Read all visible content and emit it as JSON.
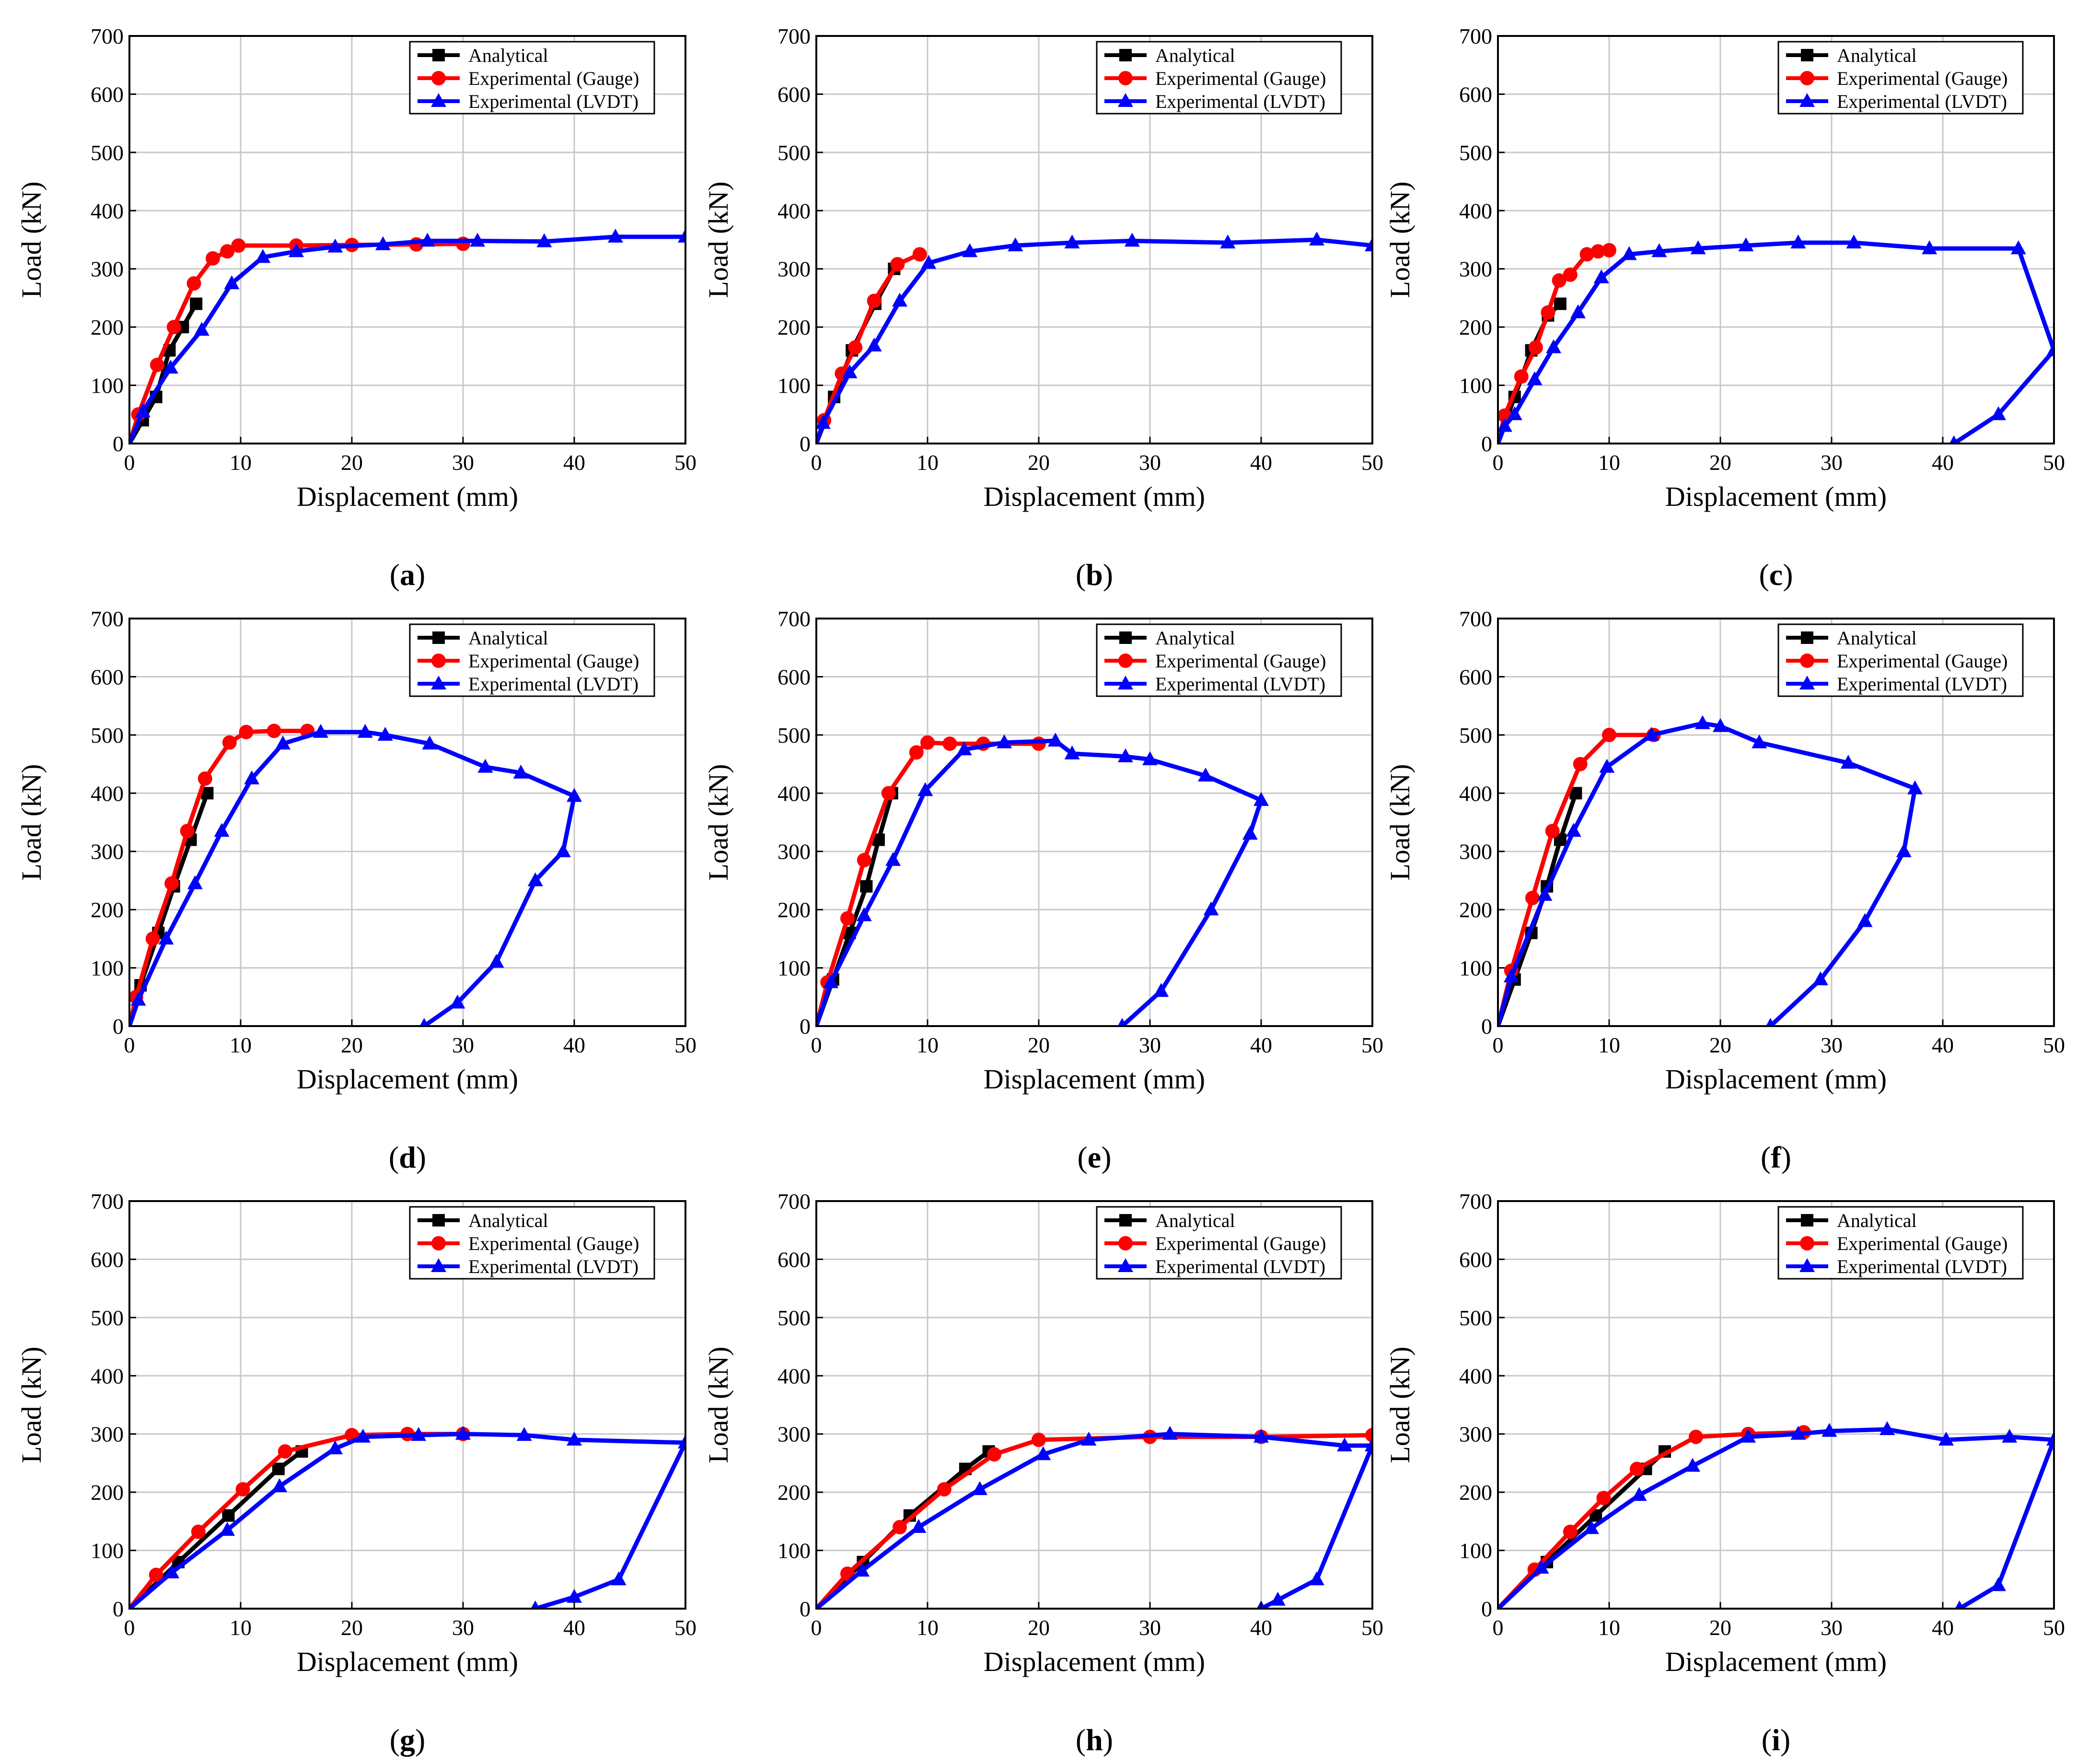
{
  "figure": {
    "legend": [
      "Analytical",
      "Experimental (Gauge)",
      "Experimental (LVDT)"
    ],
    "colors": {
      "analytical": "#000000",
      "gauge": "#ff0000",
      "lvdt": "#0000ff",
      "grid": "#c8c8c8"
    }
  },
  "chart_data": [
    {
      "panel": "a",
      "caption_letter": "a",
      "type": "line",
      "xlabel": "Displacement (mm)",
      "ylabel": "Load (kN)",
      "xlim": [
        0,
        50
      ],
      "ylim": [
        0,
        700
      ],
      "xticks": [
        0,
        10,
        20,
        30,
        40,
        50
      ],
      "yticks": [
        0,
        100,
        200,
        300,
        400,
        500,
        600,
        700
      ],
      "grid": true,
      "legend_position": "top-right",
      "series": [
        {
          "name": "Analytical",
          "marker": "square",
          "x": [
            0,
            1.2,
            2.4,
            3.6,
            4.8,
            6.0
          ],
          "y": [
            0,
            40,
            80,
            160,
            200,
            240
          ]
        },
        {
          "name": "Experimental (Gauge)",
          "marker": "circle",
          "x": [
            0,
            0.8,
            2.5,
            4.0,
            5.8,
            7.5,
            8.8,
            9.8,
            15,
            20,
            25.8,
            30
          ],
          "y": [
            0,
            50,
            135,
            200,
            275,
            318,
            330,
            340,
            340,
            341,
            342,
            343
          ]
        },
        {
          "name": "Experimental (LVDT)",
          "marker": "triangle",
          "x": [
            0,
            1.2,
            3.7,
            6.5,
            9.2,
            12,
            15,
            18.5,
            22.8,
            26.8,
            31.3,
            37.3,
            43.7,
            50
          ],
          "y": [
            0,
            55,
            130,
            195,
            275,
            320,
            330,
            338,
            342,
            348,
            348,
            347,
            355,
            355
          ]
        }
      ]
    },
    {
      "panel": "b",
      "caption_letter": "b",
      "type": "line",
      "xlabel": "Displacement (mm)",
      "ylabel": "Load (kN)",
      "xlim": [
        0,
        50
      ],
      "ylim": [
        0,
        700
      ],
      "xticks": [
        0,
        10,
        20,
        30,
        40,
        50
      ],
      "yticks": [
        0,
        100,
        200,
        300,
        400,
        500,
        600,
        700
      ],
      "grid": true,
      "legend_position": "top-right",
      "series": [
        {
          "name": "Analytical",
          "marker": "square",
          "x": [
            0,
            1.6,
            3.2,
            5.3,
            7.0
          ],
          "y": [
            0,
            80,
            160,
            240,
            300
          ]
        },
        {
          "name": "Experimental (Gauge)",
          "marker": "circle",
          "x": [
            0,
            0.7,
            2.3,
            3.5,
            5.2,
            7.3,
            9.3
          ],
          "y": [
            0,
            40,
            120,
            165,
            245,
            308,
            325
          ]
        },
        {
          "name": "Experimental (LVDT)",
          "marker": "triangle",
          "x": [
            0,
            0.6,
            3.0,
            5.2,
            7.5,
            10.1,
            13.8,
            17.9,
            23,
            28.4,
            37,
            45,
            50
          ],
          "y": [
            0,
            35,
            122,
            168,
            245,
            310,
            330,
            340,
            345,
            348,
            345,
            350,
            340
          ]
        }
      ]
    },
    {
      "panel": "c",
      "caption_letter": "c",
      "type": "line",
      "xlabel": "Displacement (mm)",
      "ylabel": "Load (kN)",
      "xlim": [
        0,
        50
      ],
      "ylim": [
        0,
        700
      ],
      "xticks": [
        0,
        10,
        20,
        30,
        40,
        50
      ],
      "yticks": [
        0,
        100,
        200,
        300,
        400,
        500,
        600,
        700
      ],
      "grid": true,
      "legend_position": "top-right",
      "series": [
        {
          "name": "Analytical",
          "marker": "square",
          "x": [
            0,
            1.5,
            3.0,
            4.5,
            5.6
          ],
          "y": [
            0,
            80,
            160,
            220,
            240
          ]
        },
        {
          "name": "Experimental (Gauge)",
          "marker": "circle",
          "x": [
            0,
            0.6,
            2.1,
            3.4,
            4.5,
            5.5,
            6.5,
            8.0,
            9.0,
            10.0
          ],
          "y": [
            0,
            48,
            115,
            165,
            225,
            280,
            290,
            325,
            330,
            332
          ]
        },
        {
          "name": "Experimental (LVDT)",
          "marker": "triangle",
          "x": [
            0,
            0.6,
            1.5,
            3.3,
            5.0,
            7.2,
            9.3,
            11.8,
            14.5,
            18.0,
            22.3,
            27.0,
            32.0,
            38.8,
            46.8,
            50,
            45,
            41
          ],
          "y": [
            0,
            30,
            50,
            110,
            165,
            225,
            285,
            325,
            330,
            335,
            340,
            345,
            345,
            335,
            335,
            160,
            50,
            0
          ]
        }
      ]
    },
    {
      "panel": "d",
      "caption_letter": "d",
      "type": "line",
      "xlabel": "Displacement (mm)",
      "ylabel": "Load (kN)",
      "xlim": [
        0,
        50
      ],
      "ylim": [
        0,
        700
      ],
      "xticks": [
        0,
        10,
        20,
        30,
        40,
        50
      ],
      "yticks": [
        0,
        100,
        200,
        300,
        400,
        500,
        600,
        700
      ],
      "grid": true,
      "legend_position": "top-right",
      "series": [
        {
          "name": "Analytical",
          "marker": "square",
          "x": [
            0,
            1.0,
            2.6,
            4.0,
            5.5,
            7.0
          ],
          "y": [
            0,
            70,
            160,
            240,
            320,
            400
          ]
        },
        {
          "name": "Experimental (Gauge)",
          "marker": "circle",
          "x": [
            0,
            0.6,
            2.1,
            3.8,
            5.2,
            6.8,
            9.0,
            10.5,
            13.0,
            16.0
          ],
          "y": [
            0,
            50,
            150,
            245,
            335,
            425,
            487,
            505,
            507,
            507
          ]
        },
        {
          "name": "Experimental (LVDT)",
          "marker": "triangle",
          "x": [
            0,
            0.8,
            3.3,
            5.9,
            8.3,
            11.0,
            13.8,
            17.2,
            21.2,
            23.0,
            27.0,
            32.0,
            35.2,
            40.0,
            39.0,
            36.5,
            33.0,
            29.5,
            26.5
          ],
          "y": [
            0,
            45,
            150,
            245,
            335,
            425,
            485,
            505,
            505,
            500,
            485,
            445,
            435,
            395,
            300,
            250,
            110,
            40,
            0
          ]
        }
      ]
    },
    {
      "panel": "e",
      "caption_letter": "e",
      "type": "line",
      "xlabel": "Displacement (mm)",
      "ylabel": "Load (kN)",
      "xlim": [
        0,
        50
      ],
      "ylim": [
        0,
        700
      ],
      "xticks": [
        0,
        10,
        20,
        30,
        40,
        50
      ],
      "yticks": [
        0,
        100,
        200,
        300,
        400,
        500,
        600,
        700
      ],
      "grid": true,
      "legend_position": "top-right",
      "series": [
        {
          "name": "Analytical",
          "marker": "square",
          "x": [
            0,
            1.5,
            3.0,
            4.5,
            5.6,
            6.8
          ],
          "y": [
            0,
            80,
            160,
            240,
            320,
            400
          ]
        },
        {
          "name": "Experimental (Gauge)",
          "marker": "circle",
          "x": [
            0,
            1.0,
            2.8,
            4.3,
            6.5,
            9.0,
            10.0,
            12.0,
            15.0,
            20.0
          ],
          "y": [
            0,
            75,
            185,
            285,
            400,
            470,
            487,
            485,
            485,
            485
          ]
        },
        {
          "name": "Experimental (LVDT)",
          "marker": "triangle",
          "x": [
            0,
            1.3,
            4.3,
            6.9,
            9.8,
            13.3,
            16.9,
            21.5,
            23.0,
            27.8,
            30.0,
            35.0,
            40.0,
            39.0,
            35.5,
            31.0,
            27.5
          ],
          "y": [
            0,
            75,
            190,
            285,
            405,
            475,
            487,
            490,
            468,
            463,
            458,
            430,
            388,
            330,
            200,
            60,
            0
          ]
        }
      ]
    },
    {
      "panel": "f",
      "caption_letter": "f",
      "type": "line",
      "xlabel": "Displacement (mm)",
      "ylabel": "Load (kN)",
      "xlim": [
        0,
        50
      ],
      "ylim": [
        0,
        700
      ],
      "xticks": [
        0,
        10,
        20,
        30,
        40,
        50
      ],
      "yticks": [
        0,
        100,
        200,
        300,
        400,
        500,
        600,
        700
      ],
      "grid": true,
      "legend_position": "top-right",
      "series": [
        {
          "name": "Analytical",
          "marker": "square",
          "x": [
            0,
            1.5,
            3.0,
            4.4,
            5.6,
            7.0
          ],
          "y": [
            0,
            80,
            160,
            240,
            320,
            400
          ]
        },
        {
          "name": "Experimental (Gauge)",
          "marker": "circle",
          "x": [
            0,
            1.2,
            3.1,
            4.9,
            7.4,
            10.0,
            14.0
          ],
          "y": [
            0,
            95,
            220,
            335,
            450,
            500,
            500
          ]
        },
        {
          "name": "Experimental (LVDT)",
          "marker": "triangle",
          "x": [
            0,
            1.2,
            4.2,
            6.8,
            9.8,
            13.8,
            18.4,
            20.0,
            23.5,
            31.5,
            37.5,
            36.5,
            33.0,
            29.0,
            24.5
          ],
          "y": [
            0,
            85,
            225,
            335,
            445,
            500,
            520,
            515,
            487,
            452,
            408,
            300,
            180,
            80,
            0
          ]
        }
      ]
    },
    {
      "panel": "g",
      "caption_letter": "g",
      "type": "line",
      "xlabel": "Displacement (mm)",
      "ylabel": "Load (kN)",
      "xlim": [
        0,
        50
      ],
      "ylim": [
        0,
        700
      ],
      "xticks": [
        0,
        10,
        20,
        30,
        40,
        50
      ],
      "yticks": [
        0,
        100,
        200,
        300,
        400,
        500,
        600,
        700
      ],
      "grid": true,
      "legend_position": "top-right",
      "series": [
        {
          "name": "Analytical",
          "marker": "square",
          "x": [
            0,
            4.4,
            8.9,
            13.4,
            15.5
          ],
          "y": [
            0,
            80,
            160,
            240,
            270
          ]
        },
        {
          "name": "Experimental (Gauge)",
          "marker": "circle",
          "x": [
            0,
            2.4,
            6.2,
            10.2,
            14.0,
            20.0,
            25.0,
            30.0
          ],
          "y": [
            0,
            58,
            132,
            205,
            270,
            298,
            300,
            300
          ]
        },
        {
          "name": "Experimental (LVDT)",
          "marker": "triangle",
          "x": [
            0,
            3.8,
            8.8,
            13.5,
            18.5,
            21.0,
            26.0,
            30.0,
            35.5,
            40.0,
            50,
            44,
            40,
            36.5
          ],
          "y": [
            0,
            62,
            135,
            210,
            275,
            295,
            298,
            300,
            298,
            290,
            285,
            50,
            20,
            0
          ]
        }
      ]
    },
    {
      "panel": "h",
      "caption_letter": "h",
      "type": "line",
      "xlabel": "Displacement (mm)",
      "ylabel": "Load (kN)",
      "xlim": [
        0,
        50
      ],
      "ylim": [
        0,
        700
      ],
      "xticks": [
        0,
        10,
        20,
        30,
        40,
        50
      ],
      "yticks": [
        0,
        100,
        200,
        300,
        400,
        500,
        600,
        700
      ],
      "grid": true,
      "legend_position": "top-right",
      "series": [
        {
          "name": "Analytical",
          "marker": "square",
          "x": [
            0,
            4.2,
            8.4,
            13.4,
            15.5
          ],
          "y": [
            0,
            80,
            160,
            240,
            270
          ]
        },
        {
          "name": "Experimental (Gauge)",
          "marker": "circle",
          "x": [
            0,
            2.8,
            7.5,
            11.5,
            16.0,
            20.0,
            30.0,
            40.0,
            50.0
          ],
          "y": [
            0,
            60,
            140,
            205,
            265,
            290,
            295,
            295,
            298
          ]
        },
        {
          "name": "Experimental (LVDT)",
          "marker": "triangle",
          "x": [
            0,
            4.1,
            9.2,
            14.7,
            20.4,
            24.5,
            31.8,
            40.0,
            47.5,
            50,
            45,
            41.5,
            40.0
          ],
          "y": [
            0,
            65,
            140,
            205,
            265,
            290,
            300,
            295,
            280,
            280,
            50,
            15,
            0
          ]
        }
      ]
    },
    {
      "panel": "i",
      "caption_letter": "i",
      "type": "line",
      "xlabel": "Displacement (mm)",
      "ylabel": "Load (kN)",
      "xlim": [
        0,
        50
      ],
      "ylim": [
        0,
        700
      ],
      "xticks": [
        0,
        10,
        20,
        30,
        40,
        50
      ],
      "yticks": [
        0,
        100,
        200,
        300,
        400,
        500,
        600,
        700
      ],
      "grid": true,
      "legend_position": "top-right",
      "series": [
        {
          "name": "Analytical",
          "marker": "square",
          "x": [
            0,
            4.4,
            8.8,
            13.3,
            15.0
          ],
          "y": [
            0,
            80,
            160,
            240,
            270
          ]
        },
        {
          "name": "Experimental (Gauge)",
          "marker": "circle",
          "x": [
            0,
            3.3,
            6.5,
            9.5,
            12.5,
            17.8,
            22.5,
            27.5
          ],
          "y": [
            0,
            67,
            132,
            190,
            240,
            295,
            300,
            303
          ]
        },
        {
          "name": "Experimental (LVDT)",
          "marker": "triangle",
          "x": [
            0,
            3.9,
            8.4,
            12.7,
            17.5,
            22.5,
            27.0,
            29.8,
            35.0,
            40.3,
            46.0,
            50,
            45,
            41.5
          ],
          "y": [
            0,
            70,
            138,
            195,
            245,
            295,
            300,
            305,
            308,
            290,
            295,
            290,
            40,
            0
          ]
        }
      ]
    }
  ]
}
